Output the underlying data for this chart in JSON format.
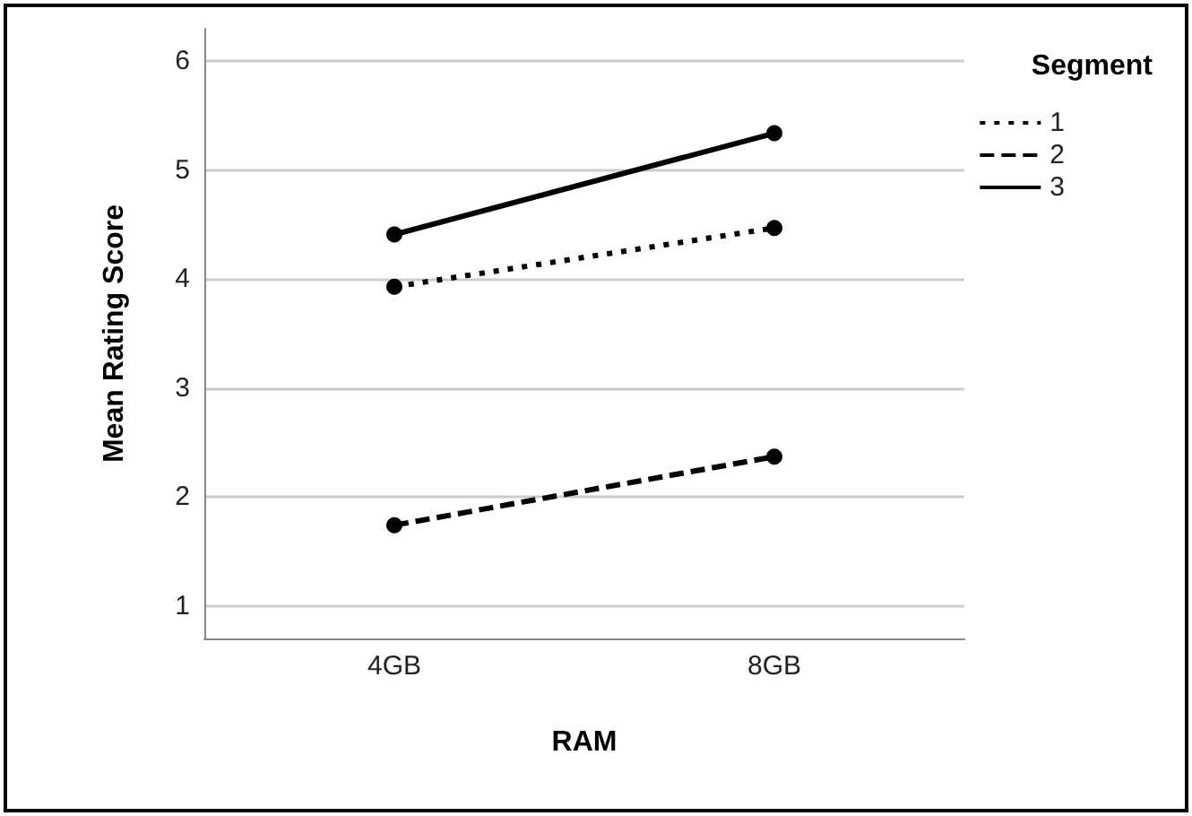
{
  "chart_data": {
    "type": "line",
    "xlabel": "RAM",
    "ylabel": "Mean Rating Score",
    "legend_title": "Segment",
    "categories": [
      "4GB",
      "8GB"
    ],
    "series": [
      {
        "name": "1",
        "color": "#000000",
        "values": [
          3.93,
          4.47
        ],
        "line_style": "dotted"
      },
      {
        "name": "2",
        "color": "#000000",
        "values": [
          1.74,
          2.37
        ],
        "line_style": "dashed"
      },
      {
        "name": "3",
        "color": "#000000",
        "values": [
          4.41,
          5.34
        ],
        "line_style": "solid"
      }
    ],
    "ylim": [
      0.7,
      6.3
    ],
    "yticks": [
      1,
      2,
      3,
      4,
      5,
      6
    ],
    "grid": "y",
    "legend": "top right",
    "marker": "circle"
  }
}
